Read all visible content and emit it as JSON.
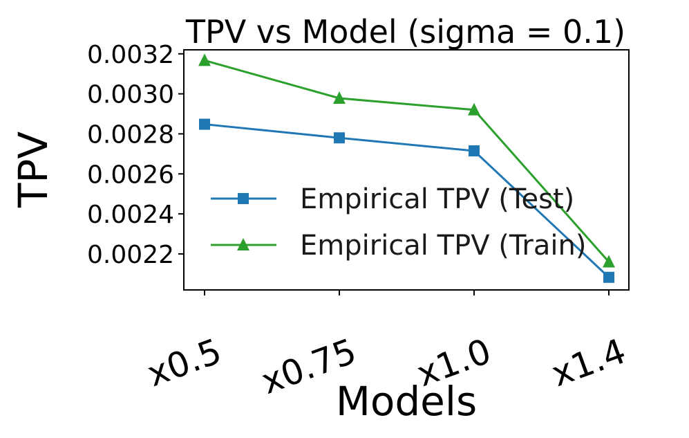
{
  "chart_data": {
    "type": "line",
    "title": "TPV vs Model (sigma = 0.1)",
    "xlabel": "Models",
    "ylabel": "TPV",
    "categories": [
      "x0.5",
      "x0.75",
      "x1.0",
      "x1.4"
    ],
    "ylim": [
      0.00202,
      0.00322
    ],
    "yticks": [
      0.0022,
      0.0024,
      0.0026,
      0.0028,
      0.003,
      0.0032
    ],
    "ytick_labels": [
      "0.0022",
      "0.0024",
      "0.0026",
      "0.0028",
      "0.0030",
      "0.0032"
    ],
    "grid": false,
    "legend_position": "center-right",
    "series": [
      {
        "name": "Empirical TPV (Test)",
        "values": [
          0.002848,
          0.00278,
          0.002715,
          0.002083
        ],
        "color": "#1f77b4",
        "marker": "square"
      },
      {
        "name": "Empirical TPV (Train)",
        "values": [
          0.003167,
          0.002978,
          0.00292,
          0.00216
        ],
        "color": "#2ca02c",
        "marker": "triangle"
      }
    ]
  }
}
